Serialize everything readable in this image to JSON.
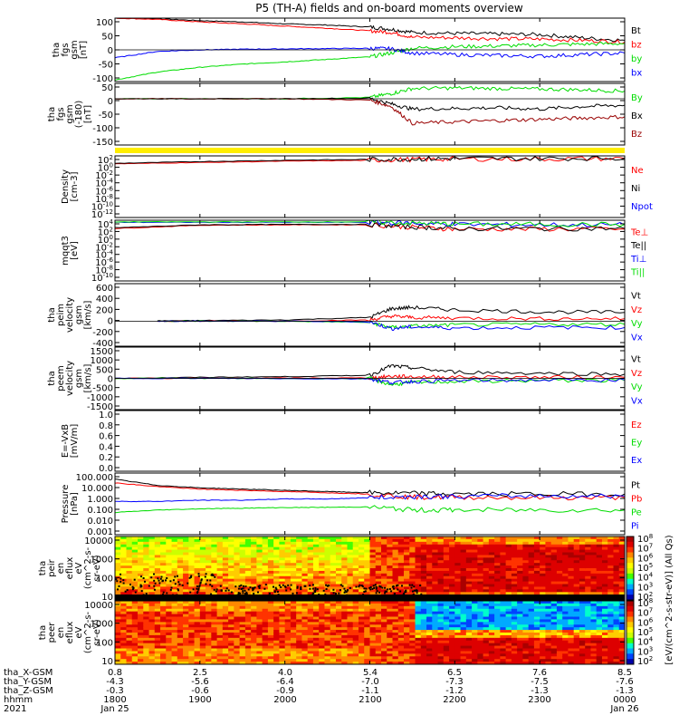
{
  "figure": {
    "title": "P5 (TH-A) fields and on-board moments overview"
  },
  "colors": {
    "black": "#000000",
    "red": "#ff0000",
    "green": "#00dd00",
    "blue": "#0000ff",
    "darkred": "#990000",
    "yellow": "#ffee00"
  },
  "chart_data": [
    {
      "type": "line",
      "id": "fgs_gsm",
      "ylabel": [
        "tha",
        "fgs",
        "gsm",
        "[nT]"
      ],
      "yticks": [
        "100",
        "50",
        "0",
        "-50",
        "-100"
      ],
      "ylim": [
        -100,
        100
      ],
      "series": [
        {
          "name": "Bt",
          "color": "#000000",
          "x": [
            1800,
            1830,
            1900,
            1930,
            2000,
            2030,
            2100,
            2115,
            2130,
            2200,
            2230,
            2300,
            2330,
            2400
          ],
          "y": [
            100,
            98,
            92,
            88,
            82,
            78,
            72,
            65,
            55,
            52,
            50,
            48,
            38,
            30
          ]
        },
        {
          "name": "bz",
          "color": "#ff0000",
          "x": [
            1800,
            1830,
            1900,
            1930,
            2000,
            2030,
            2100,
            2115,
            2130,
            2200,
            2230,
            2300,
            2330,
            2400
          ],
          "y": [
            100,
            96,
            88,
            82,
            75,
            68,
            60,
            55,
            40,
            38,
            35,
            34,
            30,
            25
          ]
        },
        {
          "name": "by",
          "color": "#00dd00",
          "x": [
            1800,
            1830,
            1900,
            1930,
            2000,
            2030,
            2100,
            2115,
            2130,
            2200,
            2230,
            2300,
            2330,
            2400
          ],
          "y": [
            -95,
            -70,
            -55,
            -45,
            -38,
            -30,
            -22,
            -10,
            5,
            10,
            12,
            15,
            18,
            20
          ]
        },
        {
          "name": "bx",
          "color": "#0000ff",
          "x": [
            1800,
            1830,
            1900,
            1930,
            2000,
            2030,
            2100,
            2115,
            2130,
            2200,
            2230,
            2300,
            2330,
            2400
          ],
          "y": [
            -25,
            -5,
            0,
            2,
            3,
            4,
            5,
            3,
            -10,
            -15,
            -18,
            -20,
            -15,
            -10
          ]
        }
      ]
    },
    {
      "type": "line",
      "id": "fgs_gsm_rot",
      "ylabel": [
        "tha",
        "fgs",
        "gsm",
        "(-180)",
        "[nT]"
      ],
      "yticks": [
        "50",
        "0",
        "-50",
        "-100",
        "-150"
      ],
      "ylim": [
        -180,
        60
      ],
      "series": [
        {
          "name": "By",
          "color": "#00dd00",
          "x": [
            1800,
            1900,
            2000,
            2100,
            2115,
            2130,
            2200,
            2230,
            2300,
            2330,
            2400
          ],
          "y": [
            0,
            0,
            0,
            5,
            20,
            40,
            42,
            40,
            38,
            35,
            30
          ]
        },
        {
          "name": "Bx",
          "color": "#000000",
          "x": [
            1800,
            1900,
            2000,
            2100,
            2115,
            2130,
            2200,
            2230,
            2300,
            2330,
            2400
          ],
          "y": [
            0,
            0,
            0,
            2,
            -20,
            -40,
            -38,
            -35,
            -40,
            -30,
            -25
          ]
        },
        {
          "name": "Bz",
          "color": "#990000",
          "x": [
            1800,
            1900,
            2000,
            2100,
            2115,
            2130,
            2200,
            2230,
            2300,
            2330,
            2400
          ],
          "y": [
            0,
            0,
            0,
            -5,
            -30,
            -95,
            -90,
            -85,
            -80,
            -75,
            -70
          ]
        }
      ]
    },
    {
      "type": "line",
      "id": "density",
      "ylabel": [
        "Density",
        "[cm-3]"
      ],
      "yticks": [
        "10^2",
        "10^0",
        "10^-2",
        "10^-4",
        "10^-6",
        "10^-8",
        "10^-10",
        "10^-12"
      ],
      "ylim": [
        -12,
        2
      ],
      "scale": "log",
      "series": [
        {
          "name": "Ne",
          "color": "#ff0000",
          "x": [
            1800,
            1900,
            2000,
            2100,
            2130,
            2200,
            2300,
            2400
          ],
          "y": [
            0.2,
            0.5,
            0.8,
            1.0,
            1.2,
            1.3,
            1.3,
            1.4
          ]
        },
        {
          "name": "Ni",
          "color": "#000000",
          "x": [
            1800,
            1900,
            2000,
            2100,
            2130,
            2200,
            2300,
            2400
          ],
          "y": [
            0.3,
            0.7,
            1.0,
            1.2,
            1.3,
            1.4,
            1.4,
            1.5
          ]
        },
        {
          "name": "Npot",
          "color": "#0000ff",
          "x": [],
          "y": []
        }
      ]
    },
    {
      "type": "line",
      "id": "temps",
      "ylabel": [
        "mqqt3",
        "[eV]"
      ],
      "yticks": [
        "10^4",
        "10^2",
        "10^0",
        "10^-2",
        "10^-4",
        "10^-6",
        "10^-8",
        "10^-10"
      ],
      "ylim": [
        -10,
        4.5
      ],
      "scale": "log",
      "series": [
        {
          "name": "Te⊥",
          "color": "#ff0000",
          "x": [
            1800,
            1900,
            2000,
            2100,
            2130,
            2200,
            2300,
            2400
          ],
          "y": [
            2.5,
            3.3,
            3.4,
            3.4,
            2.8,
            2.4,
            2.4,
            2.4
          ]
        },
        {
          "name": "Te||",
          "color": "#000000",
          "x": [
            1800,
            1900,
            2000,
            2100,
            2130,
            2200,
            2300,
            2400
          ],
          "y": [
            2.7,
            3.4,
            3.5,
            3.5,
            2.9,
            2.5,
            2.5,
            2.5
          ]
        },
        {
          "name": "Ti⊥",
          "color": "#0000ff",
          "x": [
            1800,
            1900,
            2000,
            2100,
            2130,
            2200,
            2300,
            2400
          ],
          "y": [
            4.0,
            4.0,
            4.0,
            4.0,
            3.8,
            3.5,
            3.4,
            3.4
          ]
        },
        {
          "name": "Ti||",
          "color": "#00dd00",
          "x": [
            1800,
            1900,
            2000,
            2100,
            2130,
            2200,
            2300,
            2400
          ],
          "y": [
            4.1,
            4.1,
            4.1,
            4.1,
            3.8,
            3.6,
            3.5,
            3.5
          ]
        }
      ]
    },
    {
      "type": "line",
      "id": "peim_velocity",
      "ylabel": [
        "tha",
        "peim",
        "velocity",
        "gsm",
        "[km/s]"
      ],
      "yticks": [
        "600",
        "400",
        "200",
        "0",
        "-200",
        "-400"
      ],
      "ylim": [
        -400,
        600
      ],
      "series": [
        {
          "name": "Vt",
          "color": "#000000",
          "x": [
            1830,
            1900,
            2000,
            2100,
            2115,
            2130,
            2200,
            2300,
            2400
          ],
          "y": [
            5,
            10,
            20,
            60,
            200,
            220,
            180,
            150,
            140
          ]
        },
        {
          "name": "Vz",
          "color": "#ff0000",
          "x": [
            1830,
            1900,
            2000,
            2100,
            2115,
            2130,
            2200,
            2300,
            2400
          ],
          "y": [
            0,
            0,
            0,
            20,
            80,
            60,
            50,
            40,
            40
          ]
        },
        {
          "name": "Vy",
          "color": "#00dd00",
          "x": [
            1830,
            1900,
            2000,
            2100,
            2115,
            2130,
            2200,
            2300,
            2400
          ],
          "y": [
            0,
            0,
            0,
            -20,
            -100,
            -80,
            -60,
            -50,
            -50
          ]
        },
        {
          "name": "Vx",
          "color": "#0000ff",
          "x": [
            1830,
            1900,
            2000,
            2100,
            2115,
            2130,
            2200,
            2300,
            2400
          ],
          "y": [
            0,
            0,
            0,
            -10,
            -120,
            -90,
            -110,
            -100,
            -100
          ]
        }
      ]
    },
    {
      "type": "line",
      "id": "peem_velocity",
      "ylabel": [
        "tha",
        "peem",
        "velocity",
        "gsm",
        "[km/s]"
      ],
      "yticks": [
        "1500",
        "1000",
        "500",
        "0",
        "-500",
        "-1000",
        "-1500"
      ],
      "ylim": [
        -1500,
        1500
      ],
      "series": [
        {
          "name": "Vt",
          "color": "#000000",
          "x": [
            1800,
            1900,
            2000,
            2100,
            2115,
            2130,
            2200,
            2300,
            2400
          ],
          "y": [
            0,
            50,
            80,
            150,
            600,
            500,
            300,
            250,
            200
          ]
        },
        {
          "name": "Vz",
          "color": "#ff0000",
          "x": [
            1800,
            1900,
            2000,
            2100,
            2115,
            2130,
            2200,
            2300,
            2400
          ],
          "y": [
            0,
            0,
            10,
            20,
            100,
            80,
            60,
            50,
            50
          ]
        },
        {
          "name": "Vy",
          "color": "#00dd00",
          "x": [
            1800,
            1900,
            2000,
            2100,
            2115,
            2130,
            2200,
            2300,
            2400
          ],
          "y": [
            0,
            0,
            -10,
            -20,
            -300,
            -200,
            -150,
            -100,
            -100
          ]
        },
        {
          "name": "Vx",
          "color": "#0000ff",
          "x": [
            1800,
            1900,
            2000,
            2100,
            2115,
            2130,
            2200,
            2300,
            2400
          ],
          "y": [
            0,
            0,
            -10,
            -20,
            -200,
            -150,
            -100,
            -80,
            -80
          ]
        }
      ]
    },
    {
      "type": "line",
      "id": "efield",
      "ylabel": [
        "E=-VxB",
        "[mV/m]"
      ],
      "yticks": [
        "1.0",
        "0.8",
        "0.6",
        "0.4",
        "0.2",
        "0.0"
      ],
      "ylim": [
        0,
        1
      ],
      "series": [
        {
          "name": "Ez",
          "color": "#ff0000",
          "x": [],
          "y": []
        },
        {
          "name": "Ey",
          "color": "#00dd00",
          "x": [],
          "y": []
        },
        {
          "name": "Ex",
          "color": "#0000ff",
          "x": [],
          "y": []
        }
      ]
    },
    {
      "type": "line",
      "id": "pressure",
      "ylabel": [
        "Pressure",
        "[nPa]"
      ],
      "yticks": [
        "100.000",
        "10.000",
        "1.000",
        "0.100",
        "0.010",
        "0.001"
      ],
      "ylim": [
        -3,
        2
      ],
      "scale": "log",
      "series": [
        {
          "name": "Pt",
          "color": "#000000",
          "x": [
            1800,
            1830,
            1900,
            1930,
            2000,
            2030,
            2100,
            2130,
            2200,
            2300,
            2400
          ],
          "y": [
            1.5,
            1.0,
            0.8,
            0.7,
            0.6,
            0.5,
            0.4,
            0.35,
            0.3,
            0.3,
            0.3
          ]
        },
        {
          "name": "Pb",
          "color": "#ff0000",
          "x": [
            1800,
            1830,
            1900,
            1930,
            2000,
            2030,
            2100,
            2130,
            2200,
            2300,
            2400
          ],
          "y": [
            1.2,
            0.9,
            0.7,
            0.6,
            0.5,
            0.4,
            0.3,
            0.05,
            0.05,
            0.0,
            0.0
          ]
        },
        {
          "name": "Pe",
          "color": "#00dd00",
          "x": [
            1800,
            1830,
            1900,
            1930,
            2000,
            2030,
            2100,
            2130,
            2200,
            2300,
            2400
          ],
          "y": [
            -1.2,
            -1.0,
            -0.9,
            -0.85,
            -0.8,
            -0.78,
            -0.75,
            -1.0,
            -1.0,
            -1.0,
            -1.0
          ]
        },
        {
          "name": "Pi",
          "color": "#0000ff",
          "x": [
            1800,
            1830,
            1900,
            1930,
            2000,
            2030,
            2100,
            2130,
            2200,
            2300,
            2400
          ],
          "y": [
            -0.3,
            -0.3,
            -0.2,
            -0.2,
            -0.1,
            -0.1,
            0.0,
            0.1,
            0.1,
            0.15,
            0.15
          ]
        }
      ]
    },
    {
      "type": "heatmap",
      "id": "peir_eflux",
      "ylabel": [
        "tha",
        "peir",
        "en",
        "eflux",
        "eV",
        "(cm^2-s-",
        "sr-eV)"
      ],
      "yticks": [
        "10000",
        "1000",
        "100",
        "10"
      ],
      "ylim": [
        5,
        30000
      ],
      "scale": "log"
    },
    {
      "type": "heatmap",
      "id": "peer_eflux",
      "ylabel": [
        "tha",
        "peer",
        "en",
        "eflux",
        "eV",
        "(cm^2-s-",
        "sr-eV)"
      ],
      "yticks": [
        "10000",
        "1000",
        "100",
        "10"
      ],
      "ylim": [
        5,
        30000
      ],
      "scale": "log"
    }
  ],
  "colorbar": {
    "ticks": [
      "10^8",
      "10^7",
      "10^6",
      "10^5",
      "10^4",
      "10^3",
      "10^2"
    ],
    "ticks2": [
      "10^8",
      "10^7",
      "10^6",
      "10^5",
      "10^4",
      "10^3",
      "10^2"
    ],
    "label": "[eV/(cm^2-s-str-eV)] (All Qs)"
  },
  "footer": {
    "rows": [
      {
        "label": "tha_X-GSM",
        "values": [
          "0.8",
          "2.5",
          "4.0",
          "5.4",
          "6.5",
          "7.6",
          "8.5"
        ]
      },
      {
        "label": "tha_Y-GSM",
        "values": [
          "-4.3",
          "-5.6",
          "-6.4",
          "-7.0",
          "-7.3",
          "-7.5",
          "-7.6"
        ]
      },
      {
        "label": "tha_Z-GSM",
        "values": [
          "-0.3",
          "-0.6",
          "-0.9",
          "-1.1",
          "-1.2",
          "-1.3",
          "-1.3"
        ]
      },
      {
        "label": "hhmm",
        "values": [
          "1800",
          "1900",
          "2000",
          "2100",
          "2200",
          "2300",
          "0000"
        ]
      },
      {
        "label": "2021",
        "values": [
          "Jan 25",
          "",
          "",
          "",
          "",
          "",
          "Jan 26"
        ]
      }
    ]
  }
}
